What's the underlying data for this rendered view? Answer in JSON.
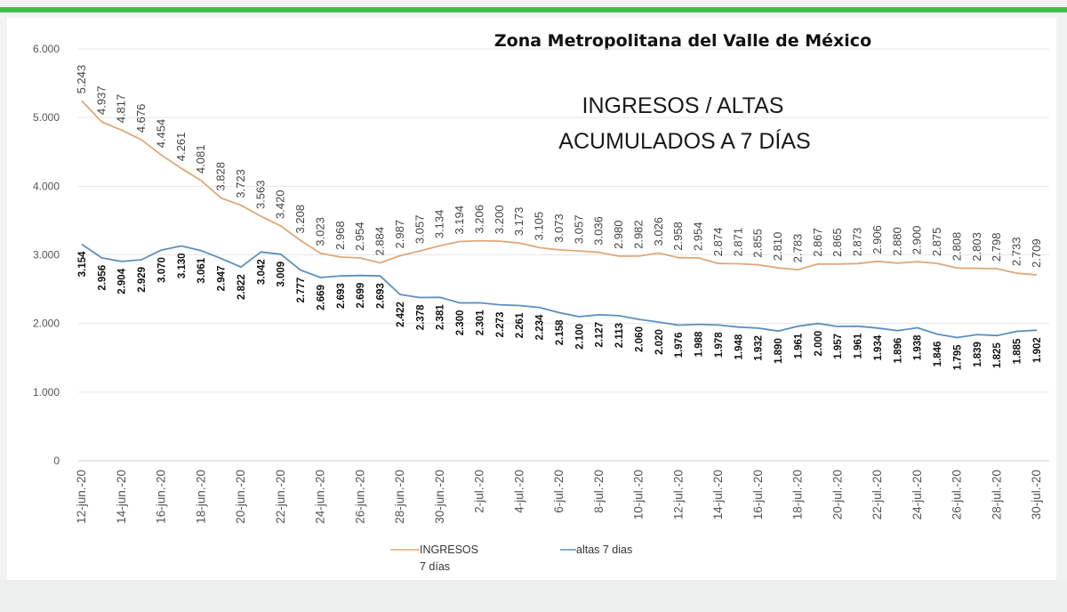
{
  "chart_data": {
    "type": "line",
    "region_title": "Zona Metropolitana del Valle de México",
    "title_line1": "INGRESOS / ALTAS",
    "title_line2": "ACUMULADOS A 7 DÍAS",
    "xlabel": "",
    "ylabel": "",
    "ylim": [
      0,
      6000
    ],
    "yticks": [
      0,
      1000,
      2000,
      3000,
      4000,
      5000,
      6000
    ],
    "ytick_labels": [
      "0",
      "1.000",
      "2.000",
      "3.000",
      "4.000",
      "5.000",
      "6.000"
    ],
    "x_tick_labels": [
      "12-jun.-20",
      "14-jun.-20",
      "16-jun.-20",
      "18-jun.-20",
      "20-jun.-20",
      "22-jun.-20",
      "24-jun.-20",
      "26-jun.-20",
      "28-jun.-20",
      "30-jun.-20",
      "2-jul.-20",
      "4-jul.-20",
      "6-jul.-20",
      "8-jul.-20",
      "10-jul.-20",
      "12-jul.-20",
      "14-jul.-20",
      "16-jul.-20",
      "18-jul.-20",
      "20-jul.-20",
      "22-jul.-20",
      "24-jul.-20",
      "26-jul.-20",
      "28-jul.-20",
      "30-jul.-20"
    ],
    "series": [
      {
        "name": "INGRESOS 7 días",
        "legend_line1": "INGRESOS",
        "legend_line2": "7 días",
        "color": "#e0a878",
        "values": [
          5243,
          4937,
          4817,
          4676,
          4454,
          4261,
          4081,
          3828,
          3723,
          3563,
          3420,
          3208,
          3023,
          2968,
          2954,
          2884,
          2987,
          3057,
          3134,
          3194,
          3206,
          3200,
          3173,
          3105,
          3073,
          3057,
          3036,
          2980,
          2982,
          3026,
          2958,
          2954,
          2874,
          2871,
          2855,
          2810,
          2783,
          2867,
          2865,
          2873,
          2906,
          2880,
          2900,
          2875,
          2808,
          2803,
          2798,
          2733,
          2709
        ],
        "labels": [
          "5.243",
          "4.937",
          "4.817",
          "4.676",
          "4.454",
          "4.261",
          "4.081",
          "3.828",
          "3.723",
          "3.563",
          "3.420",
          "3.208",
          "3.023",
          "2.968",
          "2.954",
          "2.884",
          "2.987",
          "3.057",
          "3.134",
          "3.194",
          "3.206",
          "3.200",
          "3.173",
          "3.105",
          "3.073",
          "3.057",
          "3.036",
          "2.980",
          "2.982",
          "3.026",
          "2.958",
          "2.954",
          "2.874",
          "2.871",
          "2.855",
          "2.810",
          "2.783",
          "2.867",
          "2.865",
          "2.873",
          "2.906",
          "2.880",
          "2.900",
          "2.875",
          "2.808",
          "2.803",
          "2.798",
          "2.733",
          "2.709"
        ]
      },
      {
        "name": "altas 7 dias",
        "legend_line1": "altas 7 dias",
        "color": "#5b8fc0",
        "values": [
          3154,
          2956,
          2904,
          2929,
          3070,
          3130,
          3061,
          2947,
          2822,
          3042,
          3009,
          2777,
          2669,
          2693,
          2699,
          2693,
          2422,
          2378,
          2381,
          2300,
          2301,
          2273,
          2261,
          2234,
          2158,
          2100,
          2127,
          2113,
          2060,
          2020,
          1976,
          1988,
          1978,
          1948,
          1932,
          1890,
          1961,
          2000,
          1957,
          1961,
          1934,
          1896,
          1938,
          1846,
          1795,
          1839,
          1825,
          1885,
          1902
        ],
        "labels": [
          "3.154",
          "2.956",
          "2.904",
          "2.929",
          "3.070",
          "3.130",
          "3.061",
          "2.947",
          "2.822",
          "3.042",
          "3.009",
          "2.777",
          "2.669",
          "2.693",
          "2.699",
          "2.693",
          "2.422",
          "2.378",
          "2.381",
          "2.300",
          "2.301",
          "2.273",
          "2.261",
          "2.234",
          "2.158",
          "2.100",
          "2.127",
          "2.113",
          "2.060",
          "2.020",
          "1.976",
          "1.988",
          "1.978",
          "1.948",
          "1.932",
          "1.890",
          "1.961",
          "2.000",
          "1.957",
          "1.961",
          "1.934",
          "1.896",
          "1.938",
          "1.846",
          "1.795",
          "1.839",
          "1.825",
          "1.885",
          "1.902"
        ]
      }
    ]
  },
  "colors": {
    "accent_bar": "#3fbf4a",
    "grid": "#e6e6e6"
  }
}
